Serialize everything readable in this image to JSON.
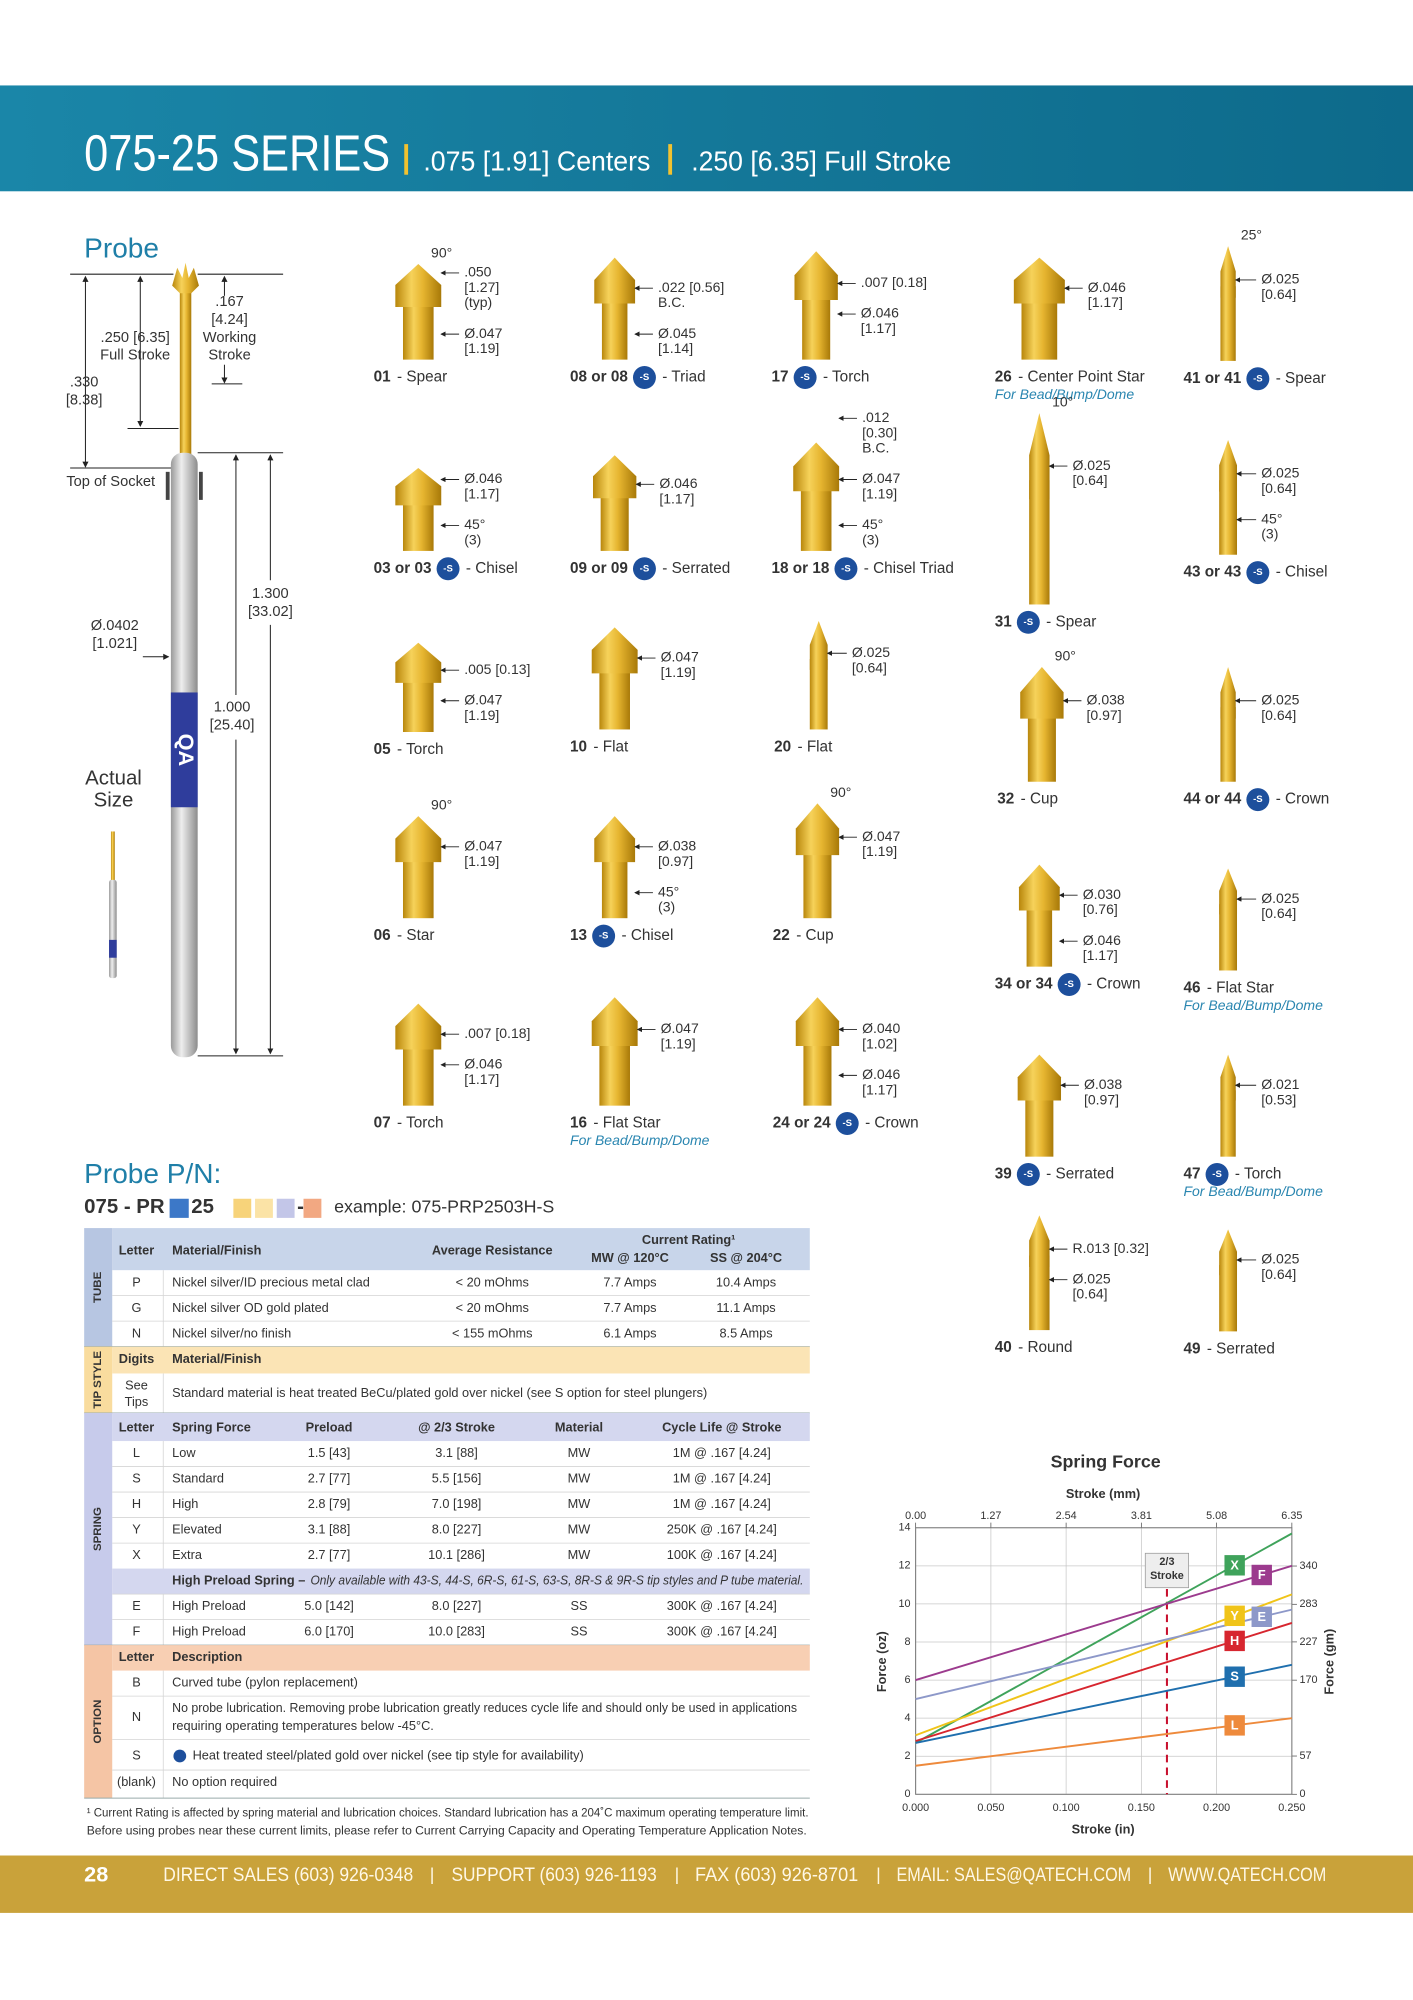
{
  "header": {
    "title": "075-25 SERIES",
    "centers": ".075 [1.91] Centers",
    "stroke": ".250 [6.35] Full Stroke"
  },
  "probe": {
    "title": "Probe",
    "dims": [
      {
        "lines": [
          ".167",
          "[4.24]",
          "Working",
          "Stroke"
        ]
      },
      {
        "lines": [
          ".250 [6.35]",
          "Full Stroke"
        ]
      },
      {
        "lines": [
          ".330",
          "[8.38]"
        ]
      },
      {
        "lines": [
          "Top of Socket"
        ]
      },
      {
        "lines": [
          "1.300",
          "[33.02]"
        ]
      },
      {
        "lines": [
          "Ø.0402",
          "[1.021]"
        ]
      },
      {
        "lines": [
          "1.000",
          "[25.40]"
        ]
      }
    ],
    "brand": "QA",
    "actual_size": [
      "Actual",
      "Size"
    ]
  },
  "tips": [
    {
      "num": "01",
      "name": "- Spear",
      "dims": [
        [
          "90°"
        ],
        [
          ".050",
          "[1.27]",
          "(typ)"
        ],
        [
          "Ø.047",
          "[1.19]"
        ]
      ]
    },
    {
      "num": "08 or 08",
      "badge": "-S",
      "name": "- Triad",
      "dims": [
        [
          ".022 [0.56]",
          "B.C."
        ],
        [
          "Ø.045",
          "[1.14]"
        ]
      ]
    },
    {
      "num": "17",
      "badge": "-S",
      "name": "- Torch",
      "dims": [
        [
          ".007 [0.18]"
        ],
        [
          "Ø.046",
          "[1.17]"
        ]
      ]
    },
    {
      "num": "26",
      "name": "- Center Point Star",
      "note": "For Bead/Bump/Dome",
      "dims": [
        [
          "Ø.046",
          "[1.17]"
        ]
      ]
    },
    {
      "num": "41 or 41",
      "badge": "-S",
      "name": "- Spear",
      "dims": [
        [
          "25°"
        ],
        [
          "Ø.025",
          "[0.64]"
        ]
      ]
    },
    {
      "num": "03 or 03",
      "badge": "-S",
      "name": "- Chisel",
      "dims": [
        [
          "Ø.046",
          "[1.17]"
        ],
        [
          "45°",
          "(3)"
        ]
      ]
    },
    {
      "num": "09 or 09",
      "badge": "-S",
      "name": "- Serrated",
      "dims": [
        [
          "Ø.046",
          "[1.17]"
        ]
      ]
    },
    {
      "num": "18 or 18",
      "badge": "-S",
      "name": "- Chisel Triad",
      "dims": [
        [
          ".012",
          "[0.30]",
          "B.C."
        ],
        [
          "Ø.047",
          "[1.19]"
        ],
        [
          "45°",
          "(3)"
        ]
      ]
    },
    {
      "num": "43 or 43",
      "badge": "-S",
      "name": "- Chisel",
      "dims": [
        [
          "Ø.025",
          "[0.64]"
        ],
        [
          "45°",
          "(3)"
        ]
      ]
    },
    {
      "num": "31",
      "badge": "-S",
      "name": "- Spear",
      "dims": [
        [
          "10°"
        ],
        [
          "Ø.025",
          "[0.64]"
        ]
      ]
    },
    {
      "num": "05",
      "name": "- Torch",
      "dims": [
        [
          ".005 [0.13]"
        ],
        [
          "Ø.047",
          "[1.19]"
        ]
      ]
    },
    {
      "num": "10",
      "name": "- Flat",
      "dims": [
        [
          "Ø.047",
          "[1.19]"
        ]
      ]
    },
    {
      "num": "20",
      "name": "- Flat",
      "dims": [
        [
          "Ø.025",
          "[0.64]"
        ]
      ]
    },
    {
      "num": "32",
      "name": "- Cup",
      "dims": [
        [
          "90°"
        ],
        [
          "Ø.038",
          "[0.97]"
        ]
      ]
    },
    {
      "num": "44 or 44",
      "badge": "-S",
      "name": "- Crown",
      "dims": [
        [
          "Ø.025",
          "[0.64]"
        ]
      ]
    },
    {
      "num": "06",
      "name": "- Star",
      "dims": [
        [
          "90°"
        ],
        [
          "Ø.047",
          "[1.19]"
        ]
      ]
    },
    {
      "num": "13",
      "badge": "-S",
      "name": "- Chisel",
      "dims": [
        [
          "Ø.038",
          "[0.97]"
        ],
        [
          "45°",
          "(3)"
        ]
      ]
    },
    {
      "num": "22",
      "name": "- Cup",
      "dims": [
        [
          "90°"
        ],
        [
          "Ø.047",
          "[1.19]"
        ]
      ]
    },
    {
      "num": "34 or 34",
      "badge": "-S",
      "name": "- Crown",
      "dims": [
        [
          "Ø.030",
          "[0.76]"
        ],
        [
          "Ø.046",
          "[1.17]"
        ]
      ]
    },
    {
      "num": "46",
      "name": "- Flat Star",
      "note": "For Bead/Bump/Dome",
      "dims": [
        [
          "Ø.025",
          "[0.64]"
        ]
      ]
    },
    {
      "num": "07",
      "name": "- Torch",
      "dims": [
        [
          ".007 [0.18]"
        ],
        [
          "Ø.046",
          "[1.17]"
        ]
      ]
    },
    {
      "num": "16",
      "name": "- Flat Star",
      "note": "For Bead/Bump/Dome",
      "dims": [
        [
          "Ø.047",
          "[1.19]"
        ]
      ]
    },
    {
      "num": "24 or 24",
      "badge": "-S",
      "name": "- Crown",
      "dims": [
        [
          "Ø.040",
          "[1.02]"
        ],
        [
          "Ø.046",
          "[1.17]"
        ]
      ]
    },
    {
      "num": "39",
      "badge": "-S",
      "name": "- Serrated",
      "dims": [
        [
          "Ø.038",
          "[0.97]"
        ]
      ]
    },
    {
      "num": "47",
      "badge": "-S",
      "name": "- Torch",
      "note": "For Bead/Bump/Dome",
      "dims": [
        [
          "Ø.021",
          "[0.53]"
        ]
      ]
    },
    {
      "num": "40",
      "name": "- Round",
      "dims": [
        [
          "R.013 [0.32]"
        ],
        [
          "Ø.025",
          "[0.64]"
        ]
      ]
    },
    {
      "num": "49",
      "name": "- Serrated",
      "dims": [
        [
          "Ø.025",
          "[0.64]"
        ]
      ]
    }
  ],
  "pn": {
    "title": "Probe P/N:",
    "prefix": "075 - PR",
    "mid": "25",
    "dash": "-",
    "example": "example: 075-PRP2503H-S"
  },
  "table": {
    "tube": {
      "label": "TUBE",
      "header": [
        "Letter",
        "Material/Finish",
        "Average Resistance"
      ],
      "current_header": "Current Rating¹",
      "sub_headers": [
        "MW @ 120°C",
        "SS @ 204°C"
      ],
      "rows": [
        [
          "P",
          "Nickel silver/ID precious metal clad",
          "< 20 mOhms",
          "7.7 Amps",
          "10.4 Amps"
        ],
        [
          "G",
          "Nickel silver OD gold plated",
          "< 20 mOhms",
          "7.7 Amps",
          "11.1 Amps"
        ],
        [
          "N",
          "Nickel silver/no finish",
          "< 155 mOhms",
          "6.1 Amps",
          "8.5 Amps"
        ]
      ]
    },
    "tip_style": {
      "label": "TIP STYLE",
      "header": [
        "Digits",
        "Material/Finish"
      ],
      "digits": [
        "See",
        "Tips"
      ],
      "text": "Standard material is heat treated BeCu/plated gold over nickel (see S option for steel plungers)"
    },
    "spring": {
      "label": "SPRING",
      "header": [
        "Letter",
        "Spring Force",
        "Preload",
        "@ 2/3 Stroke",
        "Material",
        "Cycle Life @ Stroke"
      ],
      "rows": [
        [
          "L",
          "Low",
          "1.5 [43]",
          "3.1 [88]",
          "MW",
          "1M @ .167 [4.24]"
        ],
        [
          "S",
          "Standard",
          "2.7 [77]",
          "5.5 [156]",
          "MW",
          "1M @ .167 [4.24]"
        ],
        [
          "H",
          "High",
          "2.8 [79]",
          "7.0 [198]",
          "MW",
          "1M @ .167 [4.24]"
        ],
        [
          "Y",
          "Elevated",
          "3.1 [88]",
          "8.0 [227]",
          "MW",
          "250K @ .167 [4.24]"
        ],
        [
          "X",
          "Extra",
          "2.7 [77]",
          "10.1 [286]",
          "MW",
          "100K @ .167 [4.24]"
        ]
      ],
      "note": {
        "bold": "High Preload Spring –",
        "italic": "Only available with 43-S, 44-S, 6R-S, 61-S, 63-S, 8R-S & 9R-S tip styles and P tube material."
      },
      "rows2": [
        [
          "E",
          "High Preload",
          "5.0 [142]",
          "8.0 [227]",
          "SS",
          "300K @ .167 [4.24]"
        ],
        [
          "F",
          "High Preload",
          "6.0 [170]",
          "10.0 [283]",
          "SS",
          "300K @ .167 [4.24]"
        ]
      ]
    },
    "option": {
      "label": "OPTION",
      "header": [
        "Letter",
        "Description"
      ],
      "rows": [
        {
          "letter": "B",
          "lines": [
            "Curved tube (pylon replacement)"
          ]
        },
        {
          "letter": "N",
          "lines": [
            "No probe lubrication. Removing probe lubrication greatly reduces cycle life and should only be used in applications",
            "requiring operating temperatures below -45°C."
          ]
        },
        {
          "letter": "S",
          "lines": [
            "Heat treated steel/plated gold over nickel (see tip style for availability)"
          ]
        },
        {
          "letter": "(blank)",
          "lines": [
            "No option required"
          ]
        }
      ]
    },
    "footnote": [
      "¹ Current Rating is affected by spring material and lubrication choices. Standard lubrication has a 204˚C maximum operating temperature limit.",
      "Before using probes near these current limits, please refer to Current Carrying Capacity and Operating Temperature Application Notes."
    ]
  },
  "chart_data": {
    "type": "line",
    "title": "Spring Force",
    "x_label": "Stroke (in)",
    "x2_label": "Stroke (mm)",
    "y_label": "Force (oz)",
    "y2_label": "Force (gm)",
    "x": [
      0,
      0.25
    ],
    "xlim": [
      0,
      0.25
    ],
    "xticks": [
      {
        "value": 0,
        "label": "0.000"
      },
      {
        "value": 0.05,
        "label": "0.050"
      },
      {
        "value": 0.1,
        "label": "0.100"
      },
      {
        "value": 0.15,
        "label": "0.150"
      },
      {
        "value": 0.2,
        "label": "0.200"
      },
      {
        "value": 0.25,
        "label": "0.250"
      }
    ],
    "x2lim": [
      0,
      6.35
    ],
    "x2ticks": [
      {
        "value": 0,
        "label": "0.00"
      },
      1.27,
      2.54,
      3.81,
      5.08,
      6.35
    ],
    "ylim": [
      0,
      14
    ],
    "yticks": [
      0,
      2,
      4,
      6,
      8,
      10,
      12,
      14
    ],
    "y2lim": [
      0,
      397
    ],
    "y2ticks": [
      0,
      57,
      170,
      227,
      283,
      340
    ],
    "grid": true,
    "annotation": {
      "text": [
        "2/3",
        "Stroke"
      ],
      "x": 0.167
    },
    "series": [
      {
        "name": "X",
        "color": "#3fa35b",
        "values": [
          2.7,
          13.7
        ]
      },
      {
        "name": "F",
        "color": "#9c3b8e",
        "values": [
          6.0,
          12.0
        ]
      },
      {
        "name": "Y",
        "color": "#f0c419",
        "values": [
          3.1,
          10.5
        ]
      },
      {
        "name": "E",
        "color": "#8d98c9",
        "values": [
          5.0,
          9.7
        ]
      },
      {
        "name": "H",
        "color": "#d7262f",
        "values": [
          2.8,
          9.0
        ]
      },
      {
        "name": "S",
        "color": "#1f6fae",
        "values": [
          2.7,
          6.8
        ]
      },
      {
        "name": "L",
        "color": "#ee8a3c",
        "values": [
          1.5,
          4.0
        ]
      }
    ]
  },
  "footer": {
    "page": "28",
    "sep": "|",
    "items": [
      "DIRECT SALES (603) 926-0348",
      "SUPPORT (603) 926-1193",
      "FAX (603) 926-8701",
      "EMAIL: SALES@QATECH.COM",
      "WWW.QATECH.COM"
    ]
  }
}
